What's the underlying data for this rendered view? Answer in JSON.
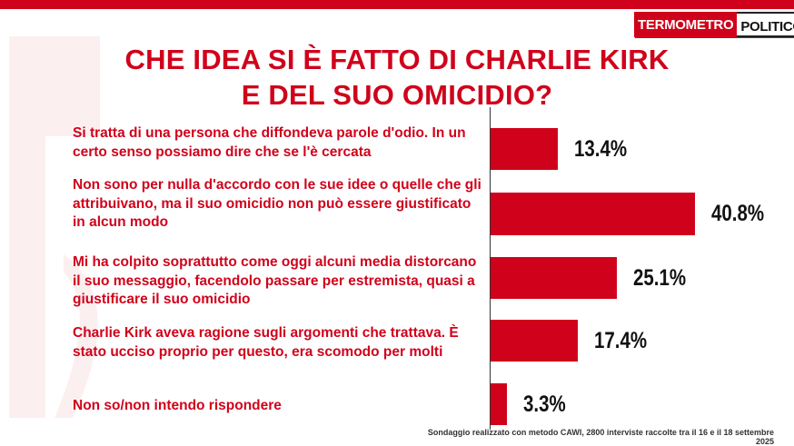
{
  "brand": {
    "logo_part1": "TERMOMETRO",
    "logo_part2": "POLITICO",
    "accent_color": "#d0021b"
  },
  "title": {
    "line1": "CHE IDEA SI È FATTO DI CHARLIE KIRK",
    "line2": "E DEL SUO OMICIDIO?"
  },
  "source": "Sondaggio realizzato con metodo CAWI, 2800 interviste raccolte tra il 16 e il 18 settembre 2025",
  "chart_data": {
    "type": "bar",
    "orientation": "horizontal",
    "categories": [
      "Si tratta di una persona che diffondeva parole d'odio. In un certo senso possiamo dire che se l'è cercata",
      "Non sono per nulla d'accordo con le sue idee o quelle che gli attribuivano, ma il suo omicidio non può essere giustificato in alcun modo",
      "Mi ha colpito soprattutto come oggi alcuni media distorcano il suo messaggio, facendolo passare per estremista, quasi a giustificare il suo omicidio",
      "Charlie Kirk aveva ragione sugli argomenti che trattava. È stato ucciso proprio per questo, era scomodo per molti",
      "Non so/non intendo rispondere"
    ],
    "values": [
      13.4,
      40.8,
      25.1,
      17.4,
      3.3
    ],
    "value_labels": [
      "13.4%",
      "40.8%",
      "25.1%",
      "17.4%",
      "3.3%"
    ],
    "unit": "%",
    "bar_color": "#d0021b",
    "xlim": [
      0,
      100
    ],
    "grid": false,
    "legend": "none"
  }
}
